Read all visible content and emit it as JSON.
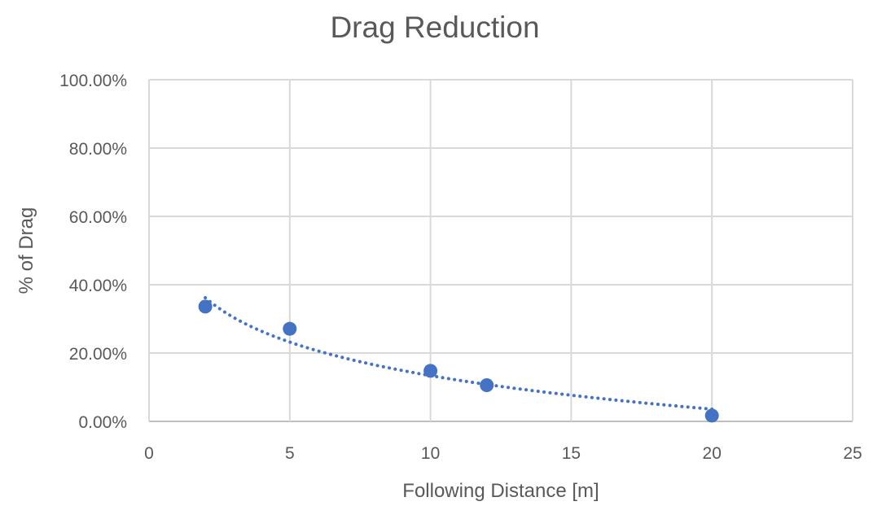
{
  "chart_data": {
    "type": "scatter",
    "title": "Drag Reduction",
    "xlabel": "Following Distance [m]",
    "ylabel": "% of Drag",
    "xlim": [
      0,
      25
    ],
    "ylim": [
      0,
      100
    ],
    "x_ticks": [
      0,
      5,
      10,
      15,
      20,
      25
    ],
    "y_ticks": [
      0,
      20,
      40,
      60,
      80,
      100
    ],
    "y_tick_labels": [
      "0.00%",
      "20.00%",
      "40.00%",
      "60.00%",
      "80.00%",
      "100.00%"
    ],
    "grid": true,
    "legend": "none",
    "series": [
      {
        "x": [
          2,
          5,
          10,
          12,
          20
        ],
        "y": [
          33.6,
          27.1,
          14.8,
          10.6,
          1.7
        ]
      }
    ],
    "trendline": {
      "type": "logarithmic",
      "style": "dotted",
      "x_range": [
        2,
        20
      ],
      "a": 46.0,
      "b": -14.16
    },
    "colors": {
      "marker": "#4472C4",
      "grid": "#D9D9D9",
      "text": "#595959"
    }
  }
}
